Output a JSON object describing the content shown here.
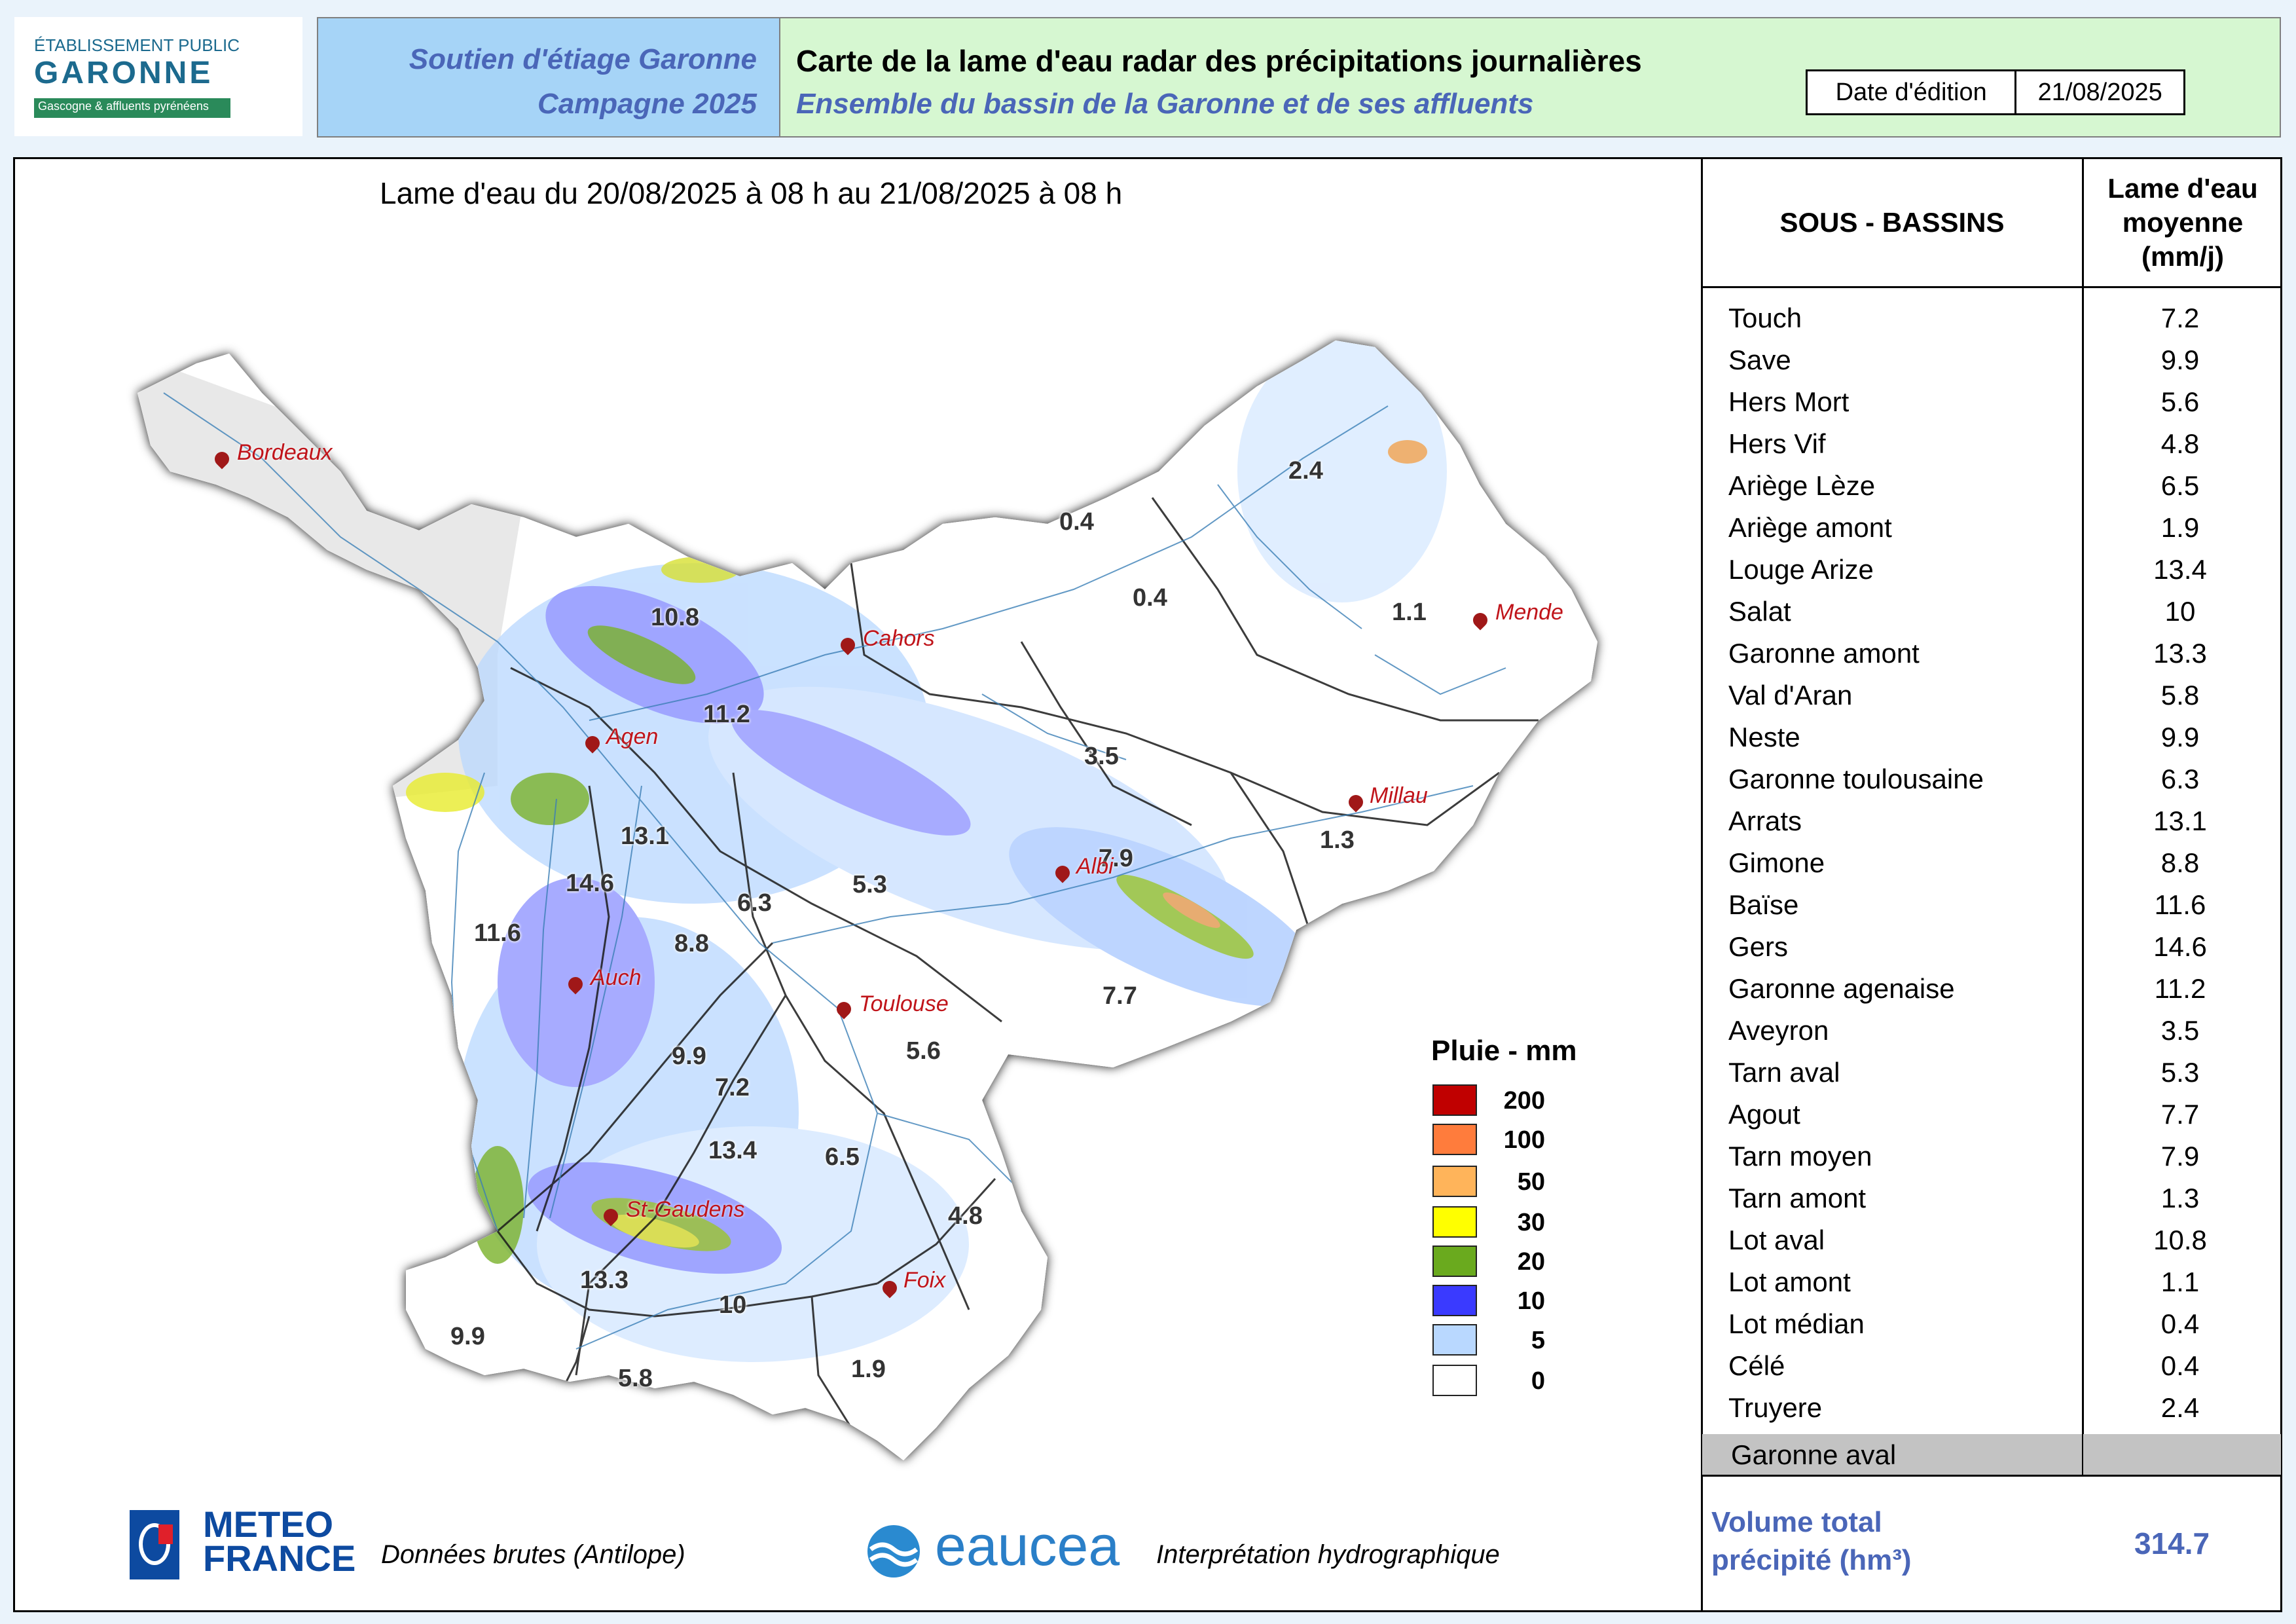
{
  "header": {
    "logo": {
      "line1": "ÉTABLISSEMENT PUBLIC",
      "line2": "GARONNE",
      "line3": "Gascogne & affluents pyrénéens"
    },
    "campaign_line1": "Soutien d'étiage Garonne",
    "campaign_line2": "Campagne 2025",
    "title": "Carte de la lame d'eau radar des précipitations journalières",
    "subtitle": "Ensemble du bassin de la Garonne et de ses affluents",
    "date_label": "Date d'édition",
    "date_value": "21/08/2025"
  },
  "map": {
    "title": "Lame d'eau du 20/08/2025  à 08 h au  21/08/2025   à 08 h",
    "cities": [
      "Bordeaux",
      "Cahors",
      "Mende",
      "Agen",
      "Millau",
      "Albi",
      "Auch",
      "Toulouse",
      "St-Gaudens",
      "Foix"
    ],
    "basin_values": [
      "2.4",
      "0.4",
      "0.4",
      "1.1",
      "10.8",
      "11.2",
      "3.5",
      "13.1",
      "1.3",
      "7.9",
      "14.6",
      "6.3",
      "5.3",
      "11.6",
      "8.8",
      "7.7",
      "9.9",
      "5.6",
      "7.2",
      "13.4",
      "6.5",
      "4.8",
      "13.3",
      "10",
      "9.9",
      "1.9",
      "5.8"
    ]
  },
  "legend": {
    "title": "Pluie - mm",
    "classes": [
      {
        "label": "200",
        "color": "#c00000"
      },
      {
        "label": "100",
        "color": "#ff7c3c"
      },
      {
        "label": "50",
        "color": "#ffb45a"
      },
      {
        "label": "30",
        "color": "#ffff00"
      },
      {
        "label": "20",
        "color": "#6aaa1e"
      },
      {
        "label": "10",
        "color": "#3a3aff"
      },
      {
        "label": "5",
        "color": "#b9d8ff"
      },
      {
        "label": "0",
        "color": "#ffffff"
      }
    ]
  },
  "table": {
    "col1_header": "SOUS - BASSINS",
    "col2_header_l1": "Lame d'eau",
    "col2_header_l2": "moyenne",
    "col2_header_l3": "(mm/j)",
    "rows": [
      {
        "name": "Touch",
        "value": "7.2"
      },
      {
        "name": "Save",
        "value": "9.9"
      },
      {
        "name": "Hers Mort",
        "value": "5.6"
      },
      {
        "name": "Hers Vif",
        "value": "4.8"
      },
      {
        "name": "Ariège Lèze",
        "value": "6.5"
      },
      {
        "name": "Ariège amont",
        "value": "1.9"
      },
      {
        "name": "Louge Arize",
        "value": "13.4"
      },
      {
        "name": "Salat",
        "value": "10"
      },
      {
        "name": "Garonne amont",
        "value": "13.3"
      },
      {
        "name": "Val d'Aran",
        "value": "5.8"
      },
      {
        "name": "Neste",
        "value": "9.9"
      },
      {
        "name": "Garonne toulousaine",
        "value": "6.3"
      },
      {
        "name": "Arrats",
        "value": "13.1"
      },
      {
        "name": "Gimone",
        "value": "8.8"
      },
      {
        "name": "Baïse",
        "value": "11.6"
      },
      {
        "name": "Gers",
        "value": "14.6"
      },
      {
        "name": "Garonne agenaise",
        "value": "11.2"
      },
      {
        "name": "Aveyron",
        "value": "3.5"
      },
      {
        "name": "Tarn aval",
        "value": "5.3"
      },
      {
        "name": "Agout",
        "value": "7.7"
      },
      {
        "name": "Tarn moyen",
        "value": "7.9"
      },
      {
        "name": "Tarn amont",
        "value": "1.3"
      },
      {
        "name": "Lot aval",
        "value": "10.8"
      },
      {
        "name": "Lot amont",
        "value": "1.1"
      },
      {
        "name": "Lot médian",
        "value": "0.4"
      },
      {
        "name": "Célé",
        "value": "0.4"
      },
      {
        "name": "Truyere",
        "value": "2.4"
      }
    ],
    "aval_row": "Garonne aval",
    "volume_label_l1": "Volume total",
    "volume_label_l2": "précipité (hm³)",
    "volume_value": "314.7"
  },
  "footer": {
    "meteo_l1": "METEO",
    "meteo_l2": "FRANCE",
    "meteo_caption": "Données brutes (Antilope)",
    "eaucea": "eaucea",
    "eaucea_caption": "Interprétation hydrographique"
  }
}
